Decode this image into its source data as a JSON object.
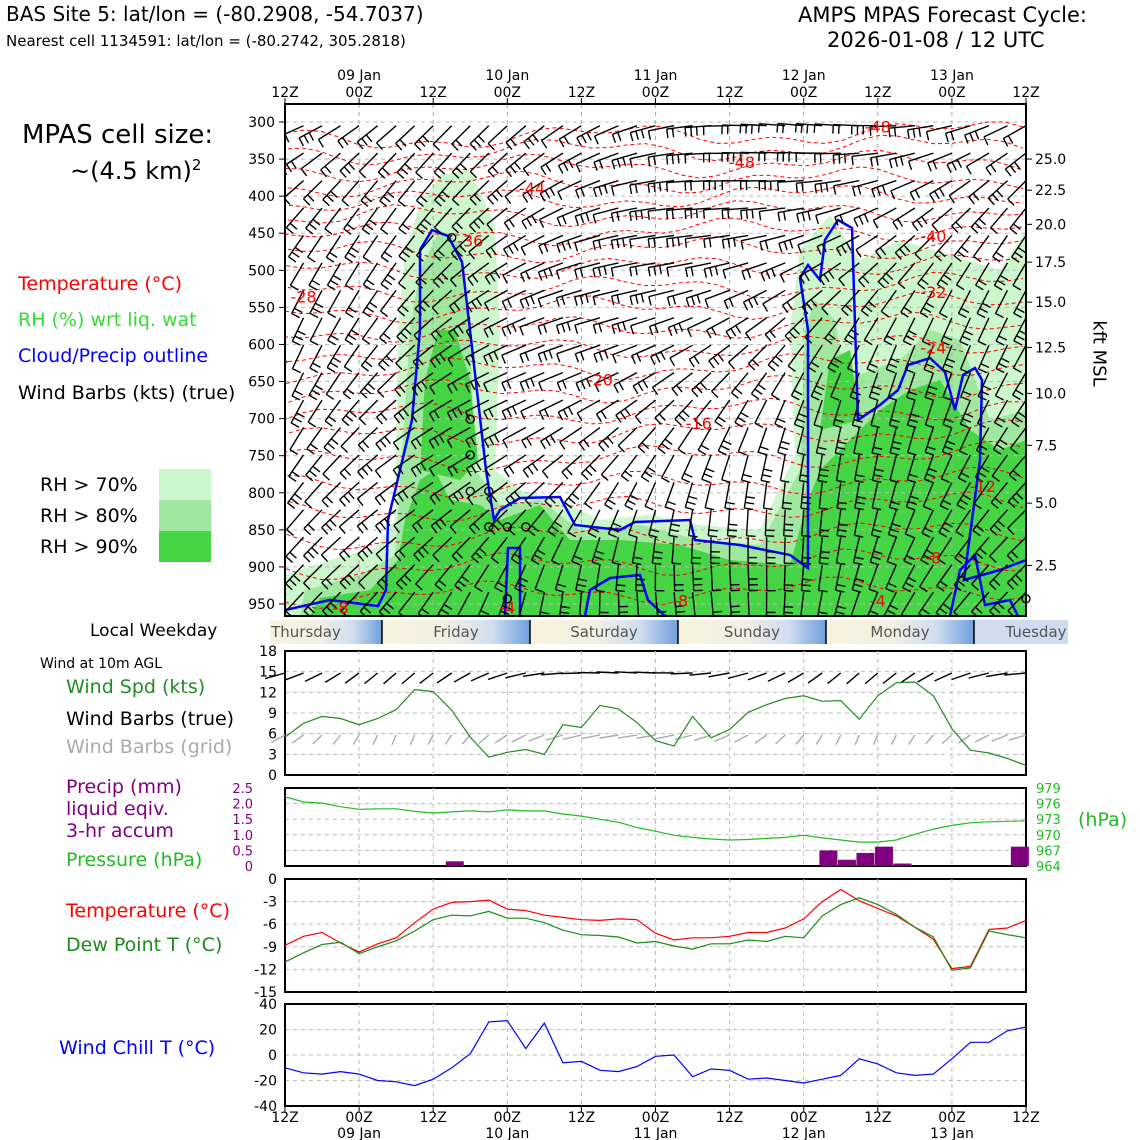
{
  "header": {
    "site_title": "BAS Site 5: lat/lon = (-80.2908, -54.7037)",
    "nearest_cell": "Nearest cell 1134591: lat/lon = (-80.2742, 305.2818)",
    "cycle_title": "AMPS MPAS Forecast Cycle:",
    "cycle_value": "2026-01-08 / 12 UTC"
  },
  "cell_size": {
    "line1": "MPAS cell size:",
    "line2": "~(4.5 km)",
    "sup": "2"
  },
  "legend": {
    "temperature": "Temperature (°C)",
    "rh": "RH (%) wrt liq. wat",
    "cloud": "Cloud/Precip outline",
    "wind": "Wind Barbs (kts) (true)",
    "rh70": "RH > 70%",
    "rh80": "RH > 80%",
    "rh90": "RH > 90%"
  },
  "colors": {
    "rh70": "#ccf7cc",
    "rh80": "#a0e8a0",
    "rh90": "#44d444",
    "temperature": "#ff0000",
    "cloud": "#0000ff",
    "windspd": "#228b22",
    "pressure": "#22bb22",
    "precip": "#800080",
    "dewpoint": "#1a8a1a",
    "windchill": "#0000ff",
    "grid_barb": "#aaaaaa"
  },
  "time_axis": {
    "ticks": [
      "12Z",
      "00Z",
      "12Z",
      "00Z",
      "12Z",
      "00Z",
      "12Z",
      "00Z",
      "12Z",
      "00Z",
      "12Z"
    ],
    "dates": [
      "09 Jan",
      "10 Jan",
      "11 Jan",
      "12 Jan",
      "13 Jan"
    ]
  },
  "weekday": {
    "label": "Local Weekday",
    "days": [
      "Thursday",
      "Friday",
      "Saturday",
      "Sunday",
      "Monday",
      "Tuesday"
    ]
  },
  "panel_labels": {
    "wind10m": "Wind at 10m AGL",
    "wind_spd": "Wind Spd (kts)",
    "wind_barbs_true": "Wind Barbs (true)",
    "wind_barbs_grid": "Wind Barbs (grid)",
    "precip1": "Precip (mm)",
    "precip2": "liquid eqiv.",
    "precip3": "3-hr accum",
    "pressure": "Pressure (hPa)",
    "hpa_unit": "(hPa)",
    "kft": "kft MSL",
    "temperature": "Temperature (°C)",
    "dewpoint": "Dew Point T (°C)",
    "windchill": "Wind Chill T (°C)"
  },
  "chart_data": [
    {
      "type": "heatmap",
      "name": "time-height cross section",
      "x_hours": [
        0,
        120
      ],
      "pressure_ticks": [
        300,
        350,
        400,
        450,
        500,
        550,
        600,
        650,
        700,
        750,
        800,
        850,
        900,
        950
      ],
      "kft_ticks": [
        "25.0",
        "22.5",
        "20.0",
        "17.5",
        "15.0",
        "12.5",
        "10.0",
        "7.5",
        "5.0",
        "2.5"
      ],
      "kft_pressures": [
        350,
        392,
        438,
        489,
        543,
        604,
        666,
        736,
        814,
        898
      ],
      "temperature_labels": [
        {
          "t": 3,
          "p": 535,
          "text": "-28"
        },
        {
          "t": 30,
          "p": 460,
          "text": "-36"
        },
        {
          "t": 40,
          "p": 389,
          "text": "-44"
        },
        {
          "t": 74,
          "p": 354,
          "text": "-48"
        },
        {
          "t": 96,
          "p": 306,
          "text": "-48"
        },
        {
          "t": 105,
          "p": 454,
          "text": "-40"
        },
        {
          "t": 105,
          "p": 529,
          "text": "-32"
        },
        {
          "t": 105,
          "p": 604,
          "text": "-24"
        },
        {
          "t": 51,
          "p": 647,
          "text": "-20"
        },
        {
          "t": 67,
          "p": 706,
          "text": "-16"
        },
        {
          "t": 113,
          "p": 791,
          "text": "-12"
        },
        {
          "t": 105,
          "p": 887,
          "text": "-8"
        },
        {
          "t": 9,
          "p": 955,
          "text": "-8"
        },
        {
          "t": 36,
          "p": 955,
          "text": "-4"
        },
        {
          "t": 64,
          "p": 945,
          "text": "-8"
        },
        {
          "t": 96,
          "p": 945,
          "text": "-4"
        }
      ],
      "zero_wind_circles": [
        {
          "t": 27,
          "p": 456
        },
        {
          "t": 30,
          "p": 701
        },
        {
          "t": 30,
          "p": 749
        },
        {
          "t": 30,
          "p": 798
        },
        {
          "t": 33,
          "p": 798
        },
        {
          "t": 33,
          "p": 846
        },
        {
          "t": 36,
          "p": 846
        },
        {
          "t": 39,
          "p": 846
        },
        {
          "t": 36,
          "p": 943
        },
        {
          "t": 120,
          "p": 943
        }
      ]
    },
    {
      "type": "line",
      "name": "10 m wind speed",
      "x_hours": [
        0,
        3,
        6,
        9,
        12,
        15,
        18,
        21,
        24,
        27,
        30,
        33,
        36,
        39,
        42,
        45,
        48,
        51,
        54,
        57,
        60,
        63,
        66,
        69,
        72,
        75,
        78,
        81,
        84,
        87,
        90,
        93,
        96,
        99,
        102,
        105,
        108,
        111,
        114,
        117,
        120
      ],
      "wind_speed_kts": [
        5.5,
        7.5,
        8.5,
        8.2,
        7.3,
        8.2,
        9.5,
        12.4,
        12.1,
        9.4,
        5.5,
        2.6,
        3.3,
        3.7,
        3.0,
        7.3,
        6.9,
        10.1,
        9.6,
        7.6,
        5.0,
        4.2,
        8.5,
        5.4,
        6.6,
        9.1,
        10.2,
        11.1,
        11.5,
        10.7,
        10.8,
        8.1,
        11.5,
        13.4,
        13.5,
        11.5,
        6.7,
        3.6,
        3.2,
        2.4,
        1.4
      ],
      "ylim": [
        0,
        18
      ],
      "yticks": [
        0,
        3,
        6,
        9,
        12,
        15,
        18
      ]
    },
    {
      "type": "bar",
      "name": "precip and pressure",
      "precip_mm": [
        {
          "t": 27.5,
          "v": 0.15
        },
        {
          "t": 88,
          "v": 0.5
        },
        {
          "t": 91,
          "v": 0.2
        },
        {
          "t": 94,
          "v": 0.42
        },
        {
          "t": 97,
          "v": 0.62
        },
        {
          "t": 100,
          "v": 0.08
        },
        {
          "t": 119,
          "v": 0.62
        }
      ],
      "precip_ylim": [
        0,
        2.5
      ],
      "precip_ticks": [
        "0",
        "0.5",
        "1.0",
        "1.5",
        "2.0",
        "2.5"
      ],
      "pressure_x_hours": [
        0,
        3,
        6,
        9,
        12,
        15,
        18,
        21,
        24,
        27,
        30,
        33,
        36,
        39,
        42,
        45,
        48,
        51,
        54,
        57,
        60,
        63,
        66,
        69,
        72,
        75,
        78,
        81,
        84,
        87,
        90,
        93,
        96,
        99,
        102,
        105,
        108,
        111,
        114,
        117,
        120
      ],
      "pressure_hpa": [
        977.3,
        976.3,
        976.1,
        975.4,
        974.9,
        975.0,
        975.0,
        974.5,
        974.2,
        974.4,
        974.6,
        974.4,
        974.8,
        974.6,
        974.6,
        974.0,
        973.6,
        973.0,
        972.4,
        971.4,
        970.7,
        969.9,
        969.5,
        969.2,
        969.0,
        969.1,
        969.3,
        969.5,
        969.9,
        969.4,
        969.0,
        968.6,
        968.6,
        969.0,
        970.1,
        971.1,
        971.8,
        972.3,
        972.5,
        972.6,
        972.7
      ],
      "pressure_ylim": [
        964,
        979
      ],
      "pressure_ticks": [
        964,
        967,
        970,
        973,
        976,
        979
      ]
    },
    {
      "type": "line",
      "name": "temperature and dew point",
      "x_hours": [
        0,
        3,
        6,
        9,
        12,
        15,
        18,
        21,
        24,
        27,
        30,
        33,
        36,
        39,
        42,
        45,
        48,
        51,
        54,
        57,
        60,
        63,
        66,
        69,
        72,
        75,
        78,
        81,
        84,
        87,
        90,
        93,
        96,
        99,
        102,
        105,
        108,
        111,
        114,
        117,
        120
      ],
      "temperature_c": [
        -8.8,
        -7.6,
        -7.1,
        -8.5,
        -9.7,
        -8.6,
        -7.8,
        -5.8,
        -4.0,
        -3.1,
        -3.0,
        -2.8,
        -4.0,
        -4.2,
        -4.8,
        -5.1,
        -5.4,
        -5.5,
        -5.3,
        -5.4,
        -7.2,
        -8.1,
        -7.8,
        -7.8,
        -7.6,
        -7.1,
        -7.1,
        -6.5,
        -5.3,
        -3.0,
        -1.4,
        -2.9,
        -3.9,
        -4.9,
        -6.4,
        -8.0,
        -11.9,
        -11.6,
        -6.7,
        -6.5,
        -5.5
      ],
      "dewpoint_c": [
        -11.0,
        -9.8,
        -8.7,
        -8.4,
        -9.9,
        -9.0,
        -8.2,
        -6.9,
        -5.4,
        -4.8,
        -4.9,
        -4.3,
        -5.2,
        -5.2,
        -5.8,
        -6.8,
        -7.4,
        -7.5,
        -7.7,
        -8.5,
        -8.3,
        -8.9,
        -9.3,
        -8.6,
        -8.6,
        -8.1,
        -8.3,
        -7.6,
        -7.8,
        -4.9,
        -3.4,
        -2.5,
        -3.4,
        -4.7,
        -6.4,
        -7.7,
        -12.1,
        -11.8,
        -6.9,
        -7.4,
        -7.8
      ],
      "ylim": [
        -15,
        0
      ],
      "yticks": [
        0,
        -3,
        -6,
        -9,
        -12,
        -15
      ]
    },
    {
      "type": "line",
      "name": "wind chill",
      "x_hours": [
        0,
        3,
        6,
        9,
        12,
        15,
        18,
        21,
        24,
        27,
        30,
        33,
        36,
        39,
        42,
        45,
        48,
        51,
        54,
        57,
        60,
        63,
        66,
        69,
        72,
        75,
        78,
        81,
        84,
        87,
        90,
        93,
        96,
        99,
        102,
        105,
        108,
        111,
        114,
        117,
        120
      ],
      "windchill_c": [
        -10,
        -14,
        -15,
        -13,
        -15,
        -20,
        -21,
        -24,
        -19,
        -10,
        1,
        26,
        27,
        5,
        25,
        -6,
        -5,
        -12,
        -13,
        -9,
        -1,
        0,
        -17,
        -11,
        -12,
        -19,
        -18,
        -20,
        -22,
        -19,
        -16,
        -3,
        -7,
        -14,
        -16,
        -15,
        -3,
        10,
        10,
        19,
        22
      ],
      "ylim": [
        -40,
        40
      ],
      "yticks": [
        40,
        20,
        0,
        -20,
        -40
      ]
    }
  ]
}
